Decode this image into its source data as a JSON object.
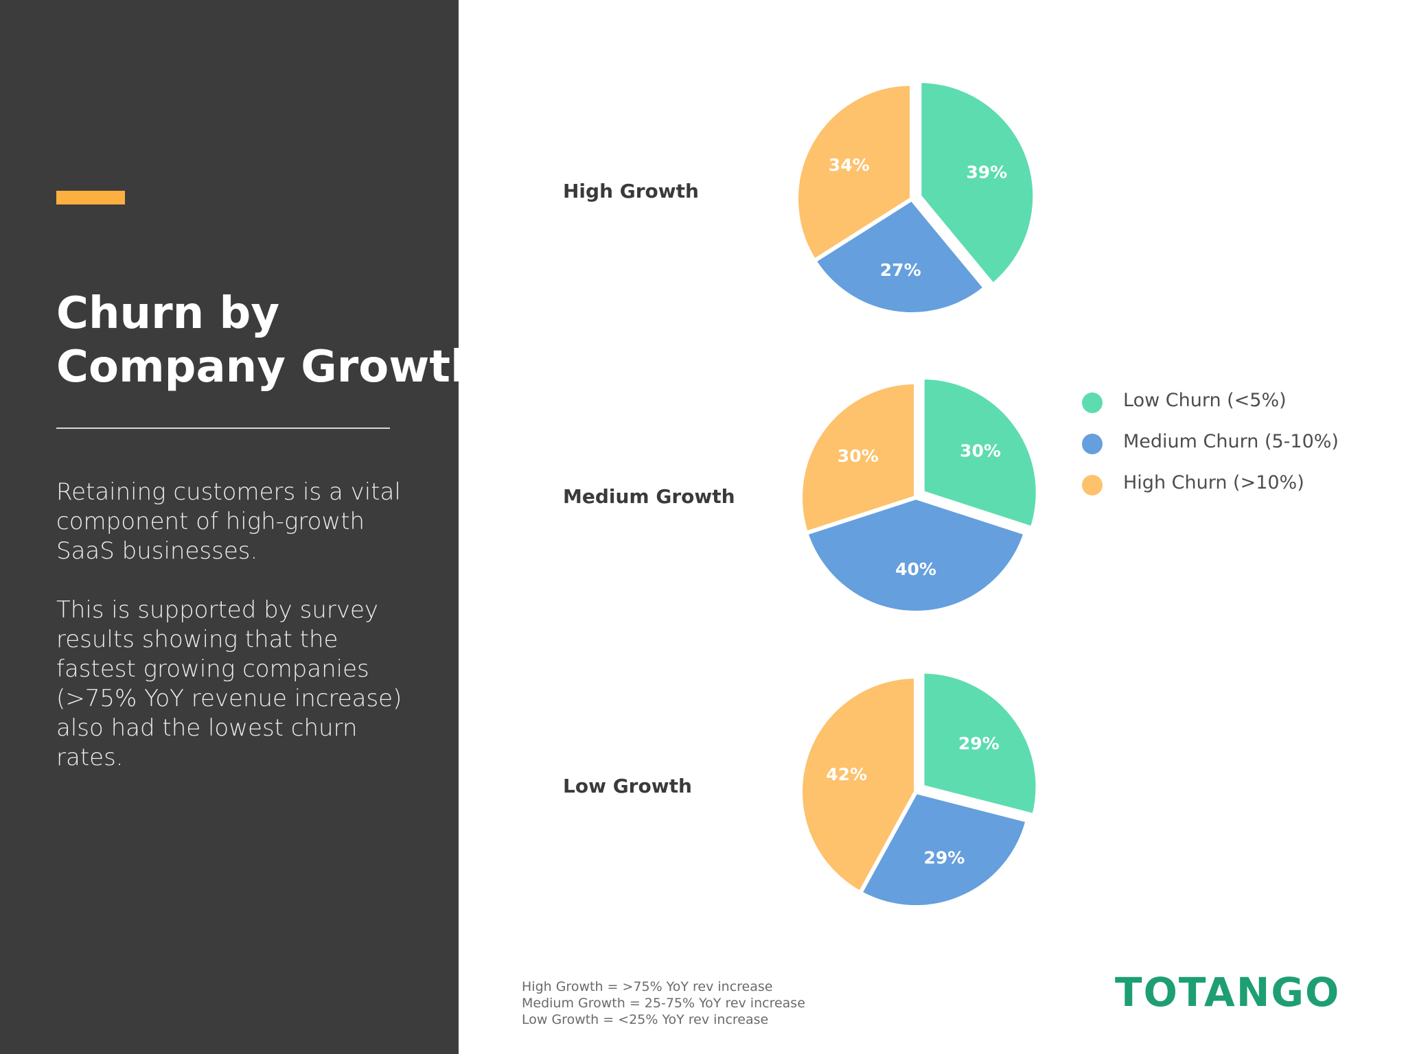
{
  "sidebar": {
    "title_lines": [
      "Churn by",
      "Company Growth"
    ],
    "desc1_lines": [
      "Retaining customers is a vital",
      "component of high-growth",
      "SaaS businesses."
    ],
    "desc2_lines": [
      "This is supported by survey",
      "results showing that the",
      "fastest growing companies",
      "(>75% YoY revenue increase)",
      "also had the lowest churn",
      "rates."
    ]
  },
  "colors": {
    "low_churn": "#5ddcb0",
    "medium_churn": "#659fdd",
    "high_churn": "#fec16c",
    "accent": "#fbb040",
    "sidebar_bg": "#3d3c3c",
    "logo": "#1e9e73"
  },
  "chart_data": {
    "type": "pie",
    "categories": [
      "Low Churn (<5%)",
      "Medium Churn (5-10%)",
      "High Churn (>10%)"
    ],
    "series": [
      {
        "name": "High Growth",
        "values": [
          39,
          27,
          34
        ],
        "labels": [
          "39%",
          "27%",
          "34%"
        ]
      },
      {
        "name": "Medium Growth",
        "values": [
          30,
          40,
          30
        ],
        "labels": [
          "30%",
          "40%",
          "30%"
        ]
      },
      {
        "name": "Low Growth",
        "values": [
          29,
          29,
          42
        ],
        "labels": [
          "29%",
          "29%",
          "42%"
        ]
      }
    ],
    "exploded_slice": "Low Churn (<5%)",
    "legend_placement": "right"
  },
  "footnote": [
    "High Growth = >75% YoY rev increase",
    "Medium Growth = 25-75% YoY rev increase",
    "Low Growth = <25% YoY rev increase"
  ],
  "logo_text": "TOTANGO"
}
